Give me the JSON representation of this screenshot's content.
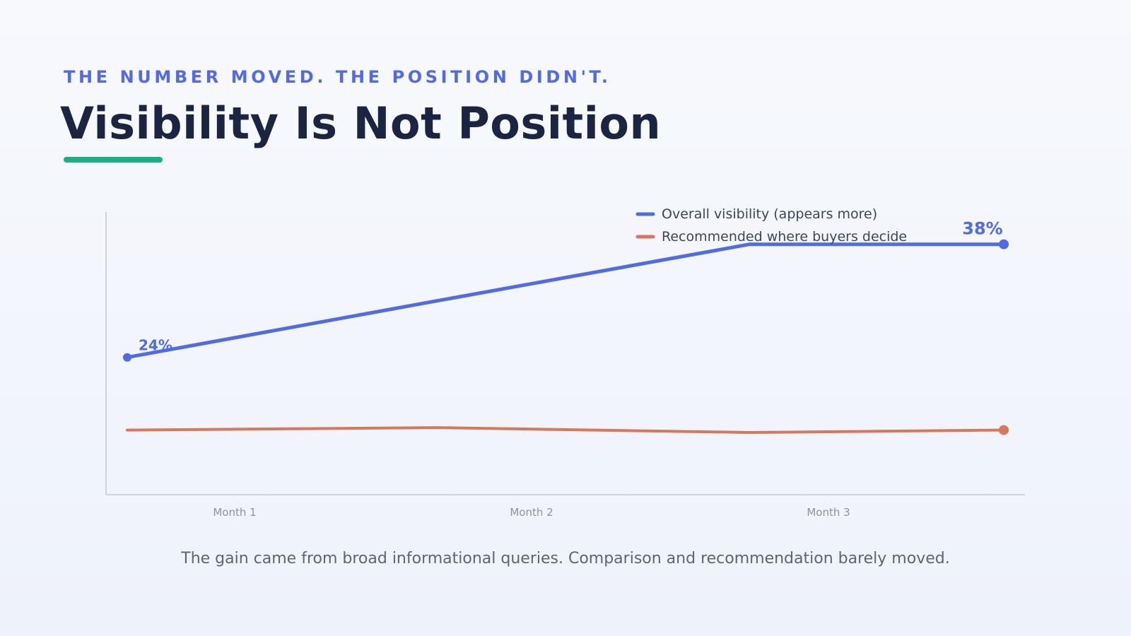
{
  "header": {
    "eyebrow": "THE NUMBER MOVED. THE POSITION DIDN'T.",
    "title": "Visibility Is Not Position"
  },
  "caption": "The gain came from broad informational queries. Comparison and recommendation barely moved.",
  "colors": {
    "accent": "#4f6bea",
    "title": "#1b2440",
    "underline": "#17b085",
    "visibility_series": "#4f6bea",
    "recommended_series": "#d8775a",
    "axis": "#c4c8d2",
    "tick_label": "#8d93a3",
    "legend_text": "#3e4554"
  },
  "chart_data": {
    "type": "line",
    "title": "",
    "xlabel": "",
    "ylabel": "",
    "categories": [
      "Month 1",
      "Month 2",
      "Month 3"
    ],
    "x": [
      0,
      1,
      2,
      3
    ],
    "ylim": [
      7,
      42
    ],
    "grid": false,
    "legend_position": "top-right",
    "series": [
      {
        "name": "Overall visibility (appears more)",
        "color": "#4f6bea",
        "values": [
          24,
          31,
          38,
          38
        ],
        "x": [
          0,
          1.06,
          2.13,
          3
        ],
        "y": [
          24,
          31,
          38,
          38
        ],
        "points": [
          [
            0,
            24
          ],
          [
            1.06,
            31
          ],
          [
            2.13,
            38
          ],
          [
            3,
            38
          ]
        ],
        "line_values": [
          24,
          31,
          38,
          38
        ]
      }
    ]
  }
}
